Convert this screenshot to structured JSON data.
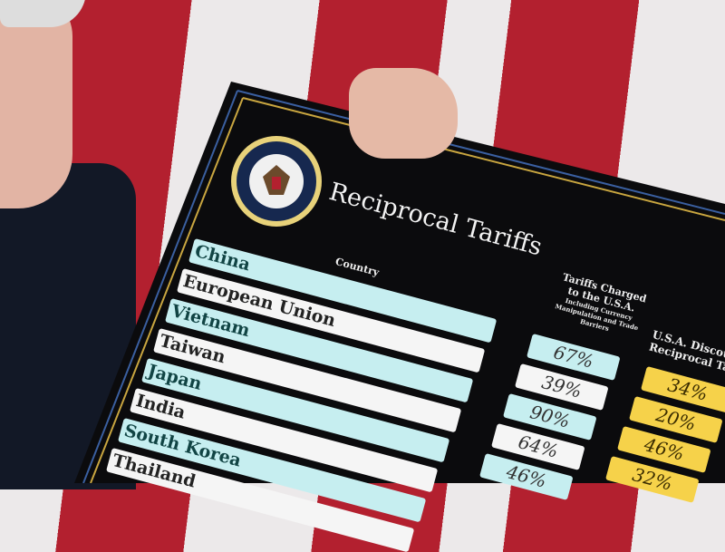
{
  "board": {
    "title": "Reciprocal Tariffs",
    "seal_text": "Seal of the President of the United States",
    "col_country": "Country",
    "col_charged": "Tariffs Charged to the U.S.A.",
    "col_charged_sub": "Including Currency Manipulation and Trade Barriers",
    "col_reciprocal": "U.S.A. Discounted Reciprocal Tariffs",
    "rows": [
      {
        "country": "China",
        "charged": "67%",
        "reciprocal": "34%"
      },
      {
        "country": "European Union",
        "charged": "39%",
        "reciprocal": "20%"
      },
      {
        "country": "Vietnam",
        "charged": "90%",
        "reciprocal": "46%"
      },
      {
        "country": "Taiwan",
        "charged": "64%",
        "reciprocal": "32%"
      },
      {
        "country": "Japan",
        "charged": "46%"
      },
      {
        "country": "India"
      },
      {
        "country": "South Korea"
      },
      {
        "country": "Thailand"
      }
    ],
    "colors": {
      "board": "#0b0b0d",
      "row_cyan": "#c6eef0",
      "row_white": "#f5f5f5",
      "reciprocal": "#f6d24a",
      "border_gold": "#c9a640"
    }
  }
}
